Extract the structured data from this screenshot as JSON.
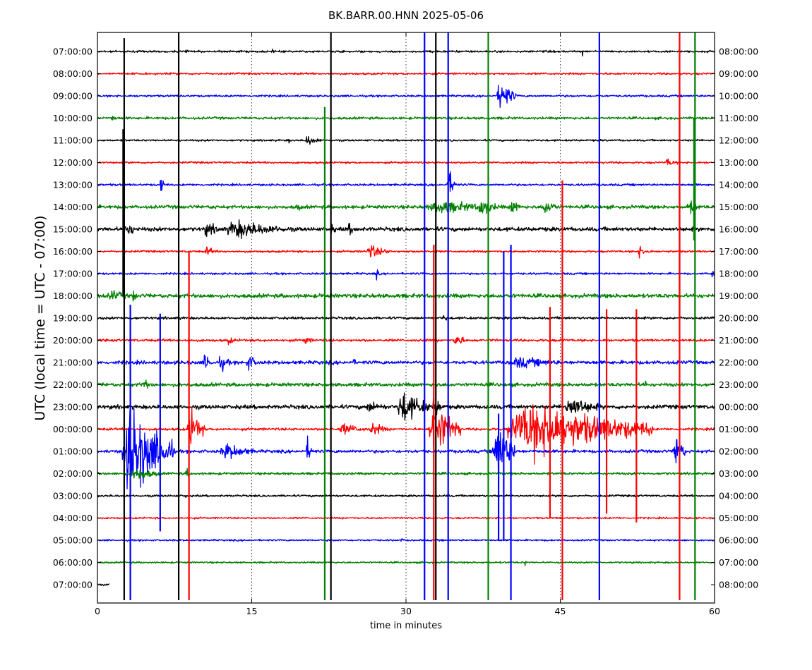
{
  "chart_data": {
    "type": "line",
    "title": "BK.BARR.00.HNN 2025-05-06",
    "xlabel": "time in minutes",
    "ylabel": "UTC (local time = UTC - 07:00)",
    "xlim": [
      0,
      60
    ],
    "x_ticks": [
      0,
      15,
      30,
      45,
      60
    ],
    "x_tick_labels": [
      "0",
      "15",
      "30",
      "45",
      "60"
    ],
    "grid": "vertical dotted at 15, 30, 45",
    "trace_colors": [
      "#000000",
      "#ff0000",
      "#0000ff",
      "#008000"
    ],
    "rows_utc": [
      "07:00:00",
      "08:00:00",
      "09:00:00",
      "10:00:00",
      "11:00:00",
      "12:00:00",
      "13:00:00",
      "14:00:00",
      "15:00:00",
      "16:00:00",
      "17:00:00",
      "18:00:00",
      "19:00:00",
      "20:00:00",
      "21:00:00",
      "22:00:00",
      "23:00:00",
      "00:00:00",
      "01:00:00",
      "02:00:00",
      "03:00:00",
      "04:00:00",
      "05:00:00",
      "06:00:00",
      "07:00:00"
    ],
    "rows_local": [
      "08:00:00",
      "09:00:00",
      "10:00:00",
      "11:00:00",
      "12:00:00",
      "13:00:00",
      "14:00:00",
      "15:00:00",
      "16:00:00",
      "17:00:00",
      "18:00:00",
      "19:00:00",
      "20:00:00",
      "21:00:00",
      "22:00:00",
      "23:00:00",
      "00:00:00",
      "01:00:00",
      "02:00:00",
      "03:00:00",
      "04:00:00",
      "05:00:00",
      "06:00:00",
      "07:00:00",
      "08:00:00"
    ],
    "last_row_end_minute": 1.2,
    "baseline_noise": [
      1.3,
      1.3,
      1.3,
      1.6,
      1.2,
      1.3,
      1.4,
      2.2,
      2.6,
      1.3,
      1.3,
      2.6,
      1.6,
      1.6,
      2.3,
      2.3,
      2.6,
      1.6,
      2.0,
      1.6,
      1.3,
      1.1,
      1.1,
      1.1,
      1.1
    ],
    "events": [
      {
        "row": 0,
        "t": 8.5,
        "dur": 0.3,
        "amp": 5
      },
      {
        "row": 0,
        "t": 16.9,
        "dur": 0.4,
        "amp": 4
      },
      {
        "row": 0,
        "t": 47.1,
        "dur": 0.3,
        "amp": 6
      },
      {
        "row": 2,
        "t": 38.9,
        "dur": 1.8,
        "amp": 22
      },
      {
        "row": 3,
        "t": 1.3,
        "dur": 0.9,
        "amp": 5
      },
      {
        "row": 4,
        "t": 20.2,
        "dur": 1.6,
        "amp": 8
      },
      {
        "row": 4,
        "t": 18.5,
        "dur": 0.5,
        "amp": 4
      },
      {
        "row": 5,
        "t": 55.2,
        "dur": 1.4,
        "amp": 6
      },
      {
        "row": 6,
        "t": 6.1,
        "dur": 0.5,
        "amp": 15
      },
      {
        "row": 6,
        "t": 34.0,
        "dur": 0.9,
        "amp": 20
      },
      {
        "row": 7,
        "t": 11.1,
        "dur": 0.6,
        "amp": 6
      },
      {
        "row": 7,
        "t": 19.3,
        "dur": 1.0,
        "amp": 6
      },
      {
        "row": 7,
        "t": 32.0,
        "dur": 8.5,
        "amp": 9
      },
      {
        "row": 7,
        "t": 37.0,
        "dur": 2.0,
        "amp": 14
      },
      {
        "row": 7,
        "t": 40.1,
        "dur": 1.2,
        "amp": 12
      },
      {
        "row": 7,
        "t": 43.2,
        "dur": 1.8,
        "amp": 12
      },
      {
        "row": 7,
        "t": 57.3,
        "dur": 1.6,
        "amp": 10
      },
      {
        "row": 8,
        "t": 2.5,
        "dur": 1.5,
        "amp": 12
      },
      {
        "row": 8,
        "t": 10.3,
        "dur": 2.2,
        "amp": 10
      },
      {
        "row": 8,
        "t": 12.5,
        "dur": 6.5,
        "amp": 13
      },
      {
        "row": 8,
        "t": 22.5,
        "dur": 1.0,
        "amp": 8
      },
      {
        "row": 8,
        "t": 24.2,
        "dur": 1.6,
        "amp": 8
      },
      {
        "row": 9,
        "t": 10.5,
        "dur": 1.0,
        "amp": 8
      },
      {
        "row": 9,
        "t": 26.2,
        "dur": 2.2,
        "amp": 10
      },
      {
        "row": 9,
        "t": 52.5,
        "dur": 1.4,
        "amp": 8
      },
      {
        "row": 10,
        "t": 27.0,
        "dur": 0.5,
        "amp": 8
      },
      {
        "row": 10,
        "t": 59.7,
        "dur": 0.3,
        "amp": 18
      },
      {
        "row": 11,
        "t": 1.0,
        "dur": 2.5,
        "amp": 8
      },
      {
        "row": 11,
        "t": 3.4,
        "dur": 0.5,
        "amp": 12
      },
      {
        "row": 12,
        "t": 33.5,
        "dur": 1.0,
        "amp": 5
      },
      {
        "row": 13,
        "t": 12.5,
        "dur": 1.2,
        "amp": 6
      },
      {
        "row": 13,
        "t": 34.7,
        "dur": 1.0,
        "amp": 14
      },
      {
        "row": 13,
        "t": 20.0,
        "dur": 1.2,
        "amp": 6
      },
      {
        "row": 14,
        "t": 10.3,
        "dur": 1.0,
        "amp": 12
      },
      {
        "row": 14,
        "t": 11.8,
        "dur": 1.2,
        "amp": 12
      },
      {
        "row": 14,
        "t": 14.5,
        "dur": 1.2,
        "amp": 12
      },
      {
        "row": 14,
        "t": 24.8,
        "dur": 0.3,
        "amp": 10
      },
      {
        "row": 14,
        "t": 40.0,
        "dur": 6.5,
        "amp": 8
      },
      {
        "row": 15,
        "t": 4.2,
        "dur": 1.4,
        "amp": 8
      },
      {
        "row": 15,
        "t": 53.0,
        "dur": 1.2,
        "amp": 6
      },
      {
        "row": 16,
        "t": 26.0,
        "dur": 3.0,
        "amp": 8
      },
      {
        "row": 16,
        "t": 29.2,
        "dur": 3.2,
        "amp": 24
      },
      {
        "row": 16,
        "t": 32.6,
        "dur": 1.0,
        "amp": 20
      },
      {
        "row": 16,
        "t": 45.5,
        "dur": 3.5,
        "amp": 16
      },
      {
        "row": 17,
        "t": 23.5,
        "dur": 3.0,
        "amp": 8
      },
      {
        "row": 17,
        "t": 26.5,
        "dur": 1.8,
        "amp": 10
      },
      {
        "row": 17,
        "t": 8.8,
        "dur": 1.6,
        "amp": 28
      },
      {
        "row": 17,
        "t": 32.3,
        "dur": 3.0,
        "amp": 38
      },
      {
        "row": 17,
        "t": 40.0,
        "dur": 14.0,
        "amp": 38
      },
      {
        "row": 18,
        "t": 2.5,
        "dur": 5.0,
        "amp": 62
      },
      {
        "row": 18,
        "t": 12.0,
        "dur": 3.5,
        "amp": 12
      },
      {
        "row": 18,
        "t": 20.3,
        "dur": 0.8,
        "amp": 16
      },
      {
        "row": 18,
        "t": 38.5,
        "dur": 2.2,
        "amp": 42
      },
      {
        "row": 18,
        "t": 56.0,
        "dur": 1.2,
        "amp": 26
      },
      {
        "row": 19,
        "t": 3.3,
        "dur": 3.0,
        "amp": 10
      },
      {
        "row": 19,
        "t": 8.6,
        "dur": 0.3,
        "amp": 12
      },
      {
        "row": 20,
        "t": 8.5,
        "dur": 0.3,
        "amp": 7
      },
      {
        "row": 22,
        "t": 23.3,
        "dur": 0.3,
        "amp": 4
      },
      {
        "row": 22,
        "t": 29.5,
        "dur": 0.3,
        "amp": 4
      },
      {
        "row": 23,
        "t": 41.5,
        "dur": 0.3,
        "amp": 6
      }
    ],
    "spikes": [
      {
        "t": 2.6,
        "top": -0.6,
        "bottom": 24.7,
        "series": 0
      },
      {
        "t": 7.9,
        "top": -0.9,
        "bottom": 24.7,
        "series": 0
      },
      {
        "t": 22.7,
        "top": -0.9,
        "bottom": 24.7,
        "series": 0
      },
      {
        "t": 32.9,
        "top": -0.9,
        "bottom": 24.7,
        "series": 0
      },
      {
        "t": 31.8,
        "top": -0.9,
        "bottom": 24.7,
        "series": 2
      },
      {
        "t": 34.1,
        "top": -0.9,
        "bottom": 24.7,
        "series": 2
      },
      {
        "t": 48.8,
        "top": -0.9,
        "bottom": 24.7,
        "series": 2
      },
      {
        "t": 38.0,
        "top": -0.9,
        "bottom": 24.7,
        "series": 3
      },
      {
        "t": 58.1,
        "top": -0.9,
        "bottom": 24.7,
        "series": 3
      },
      {
        "t": 56.6,
        "top": -0.9,
        "bottom": 24.7,
        "series": 1
      },
      {
        "t": 22.1,
        "top": 2.5,
        "bottom": 24.7,
        "series": 3
      },
      {
        "t": 2.5,
        "top": 3.5,
        "bottom": 11.0,
        "series": 0
      },
      {
        "t": 3.2,
        "top": 11.4,
        "bottom": 24.7,
        "series": 2
      },
      {
        "t": 6.1,
        "top": 11.8,
        "bottom": 21.6,
        "series": 2
      },
      {
        "t": 8.9,
        "top": 9.0,
        "bottom": 24.7,
        "series": 1
      },
      {
        "t": 39.5,
        "top": 9.0,
        "bottom": 22.0,
        "series": 2
      },
      {
        "t": 40.2,
        "top": 8.7,
        "bottom": 24.7,
        "series": 2
      },
      {
        "t": 45.2,
        "top": 5.8,
        "bottom": 24.7,
        "series": 1
      },
      {
        "t": 39.0,
        "top": 16.3,
        "bottom": 22.0,
        "series": 2
      },
      {
        "t": 44.0,
        "top": 11.5,
        "bottom": 21.0,
        "series": 1
      },
      {
        "t": 49.5,
        "top": 11.6,
        "bottom": 20.8,
        "series": 1
      },
      {
        "t": 52.4,
        "top": 11.6,
        "bottom": 21.2,
        "series": 1
      },
      {
        "t": 32.7,
        "top": 8.7,
        "bottom": 24.7,
        "series": 1
      },
      {
        "t": 58.0,
        "top": 3.0,
        "bottom": 8.5,
        "series": 3
      },
      {
        "t": 56.6,
        "top": 3.0,
        "bottom": 12.0,
        "series": 1
      }
    ]
  }
}
